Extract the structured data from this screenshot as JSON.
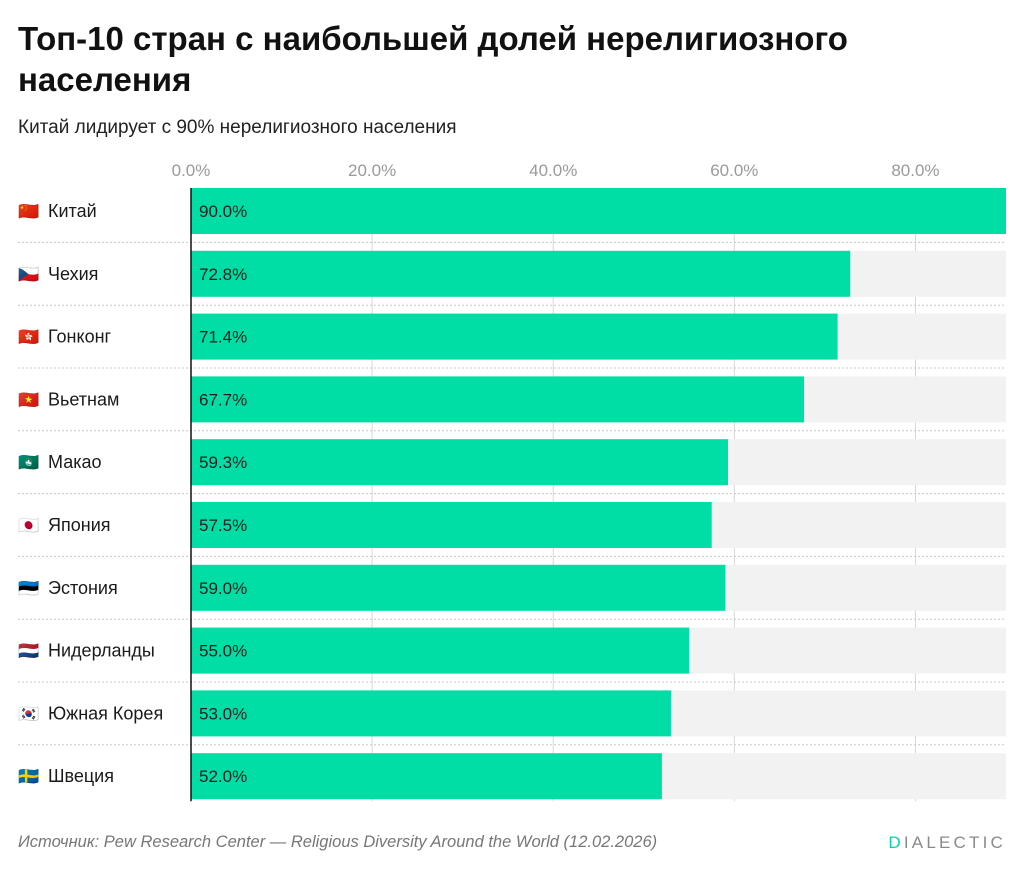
{
  "title": "Топ-10 стран с наибольшей долей нерелигиозного населения",
  "subtitle": "Китай лидирует с 90% нерелигиозного населения",
  "chart_data": {
    "type": "bar",
    "orientation": "horizontal",
    "categories": [
      {
        "flag": "🇨🇳",
        "name": "Китай"
      },
      {
        "flag": "🇨🇿",
        "name": "Чехия"
      },
      {
        "flag": "🇭🇰",
        "name": "Гонконг"
      },
      {
        "flag": "🇻🇳",
        "name": "Вьетнам"
      },
      {
        "flag": "🇲🇴",
        "name": "Макао"
      },
      {
        "flag": "🇯🇵",
        "name": "Япония"
      },
      {
        "flag": "🇪🇪",
        "name": "Эстония"
      },
      {
        "flag": "🇳🇱",
        "name": "Нидерланды"
      },
      {
        "flag": "🇰🇷",
        "name": "Южная Корея"
      },
      {
        "flag": "🇸🇪",
        "name": "Швеция"
      }
    ],
    "values": [
      90.0,
      72.8,
      71.4,
      67.7,
      59.3,
      57.5,
      59.0,
      55.0,
      53.0,
      52.0
    ],
    "value_labels": [
      "90.0%",
      "72.8%",
      "71.4%",
      "67.7%",
      "59.3%",
      "57.5%",
      "59.0%",
      "55.0%",
      "53.0%",
      "52.0%"
    ],
    "xlim": [
      0,
      90
    ],
    "x_ticks": [
      0,
      20,
      40,
      60,
      80
    ],
    "x_tick_labels": [
      "0.0%",
      "20.0%",
      "40.0%",
      "60.0%",
      "80.0%"
    ],
    "grid": true,
    "bar_color": "#00dea6",
    "track_color": "#f2f2f2"
  },
  "footer": {
    "source": "Источник: Pew Research Center — Religious Diversity Around the World (12.02.2026)",
    "brand_first": "D",
    "brand_rest": "IALECTIC"
  }
}
